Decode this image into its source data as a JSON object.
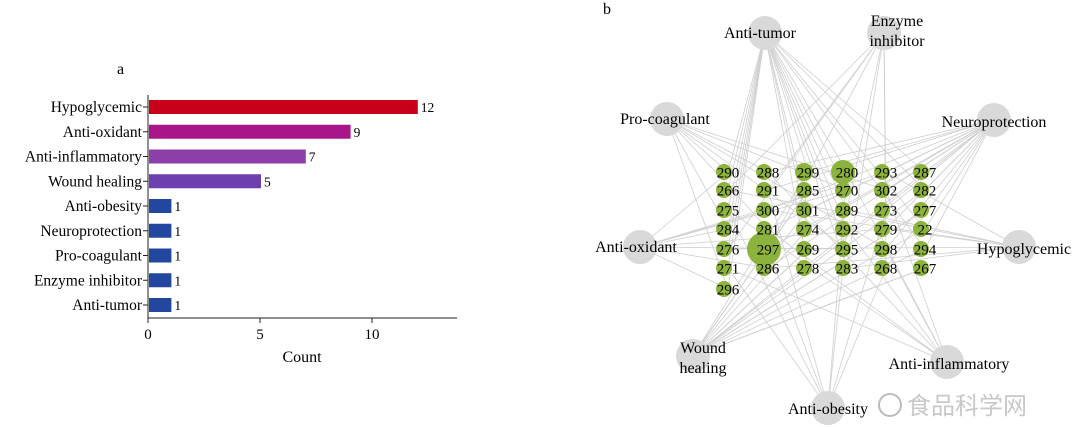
{
  "chart_data": [
    {
      "panel": "a",
      "type": "bar",
      "orientation": "horizontal",
      "xlabel": "Count",
      "xlim": [
        0,
        14
      ],
      "xticks": [
        0,
        5,
        10
      ],
      "categories": [
        "Hypoglycemic",
        "Anti-oxidant",
        "Anti-inflammatory",
        "Wound healing",
        "Anti-obesity",
        "Neuroprotection",
        "Pro-coagulant",
        "Enzyme inhibitor",
        "Anti-tumor"
      ],
      "values": [
        12,
        9,
        7,
        5,
        1,
        1,
        1,
        1,
        1
      ],
      "colors": [
        "#c8001a",
        "#a8178a",
        "#8c3fa8",
        "#6e3fae",
        "#23479e",
        "#23479e",
        "#23479e",
        "#23479e",
        "#23479e"
      ]
    },
    {
      "panel": "b",
      "type": "network",
      "hubs": [
        "Anti-tumor",
        "Enzyme inhibitor",
        "Pro-coagulant",
        "Neuroprotection",
        "Anti-oxidant",
        "Hypoglycemic",
        "Wound healing",
        "Anti-inflammatory",
        "Anti-obesity"
      ],
      "hub_labels": {
        "Anti-tumor": [
          "Anti-tumor"
        ],
        "Enzyme inhibitor": [
          "Enzyme",
          "inhibitor"
        ],
        "Pro-coagulant": [
          "Pro-coagulant"
        ],
        "Neuroprotection": [
          "Neuroprotection"
        ],
        "Anti-oxidant": [
          "Anti-oxidant"
        ],
        "Hypoglycemic": [
          "Hypoglycemic"
        ],
        "Wound healing": [
          "Wound",
          "healing"
        ],
        "Anti-inflammatory": [
          "Anti-inflammatory"
        ],
        "Anti-obesity": [
          "Anti-obesity"
        ]
      },
      "compound_grid": [
        [
          "290",
          "288",
          "299",
          "280",
          "293",
          "287"
        ],
        [
          "266",
          "291",
          "285",
          "270",
          "302",
          "282"
        ],
        [
          "275",
          "300",
          "301",
          "289",
          "273",
          "277"
        ],
        [
          "284",
          "281",
          "274",
          "292",
          "279",
          "22"
        ],
        [
          "276",
          "297",
          "269",
          "295",
          "298",
          "294"
        ],
        [
          "271",
          "286",
          "278",
          "283",
          "268",
          "267"
        ],
        [
          "296"
        ]
      ],
      "hub_color": "#d9d9d9",
      "node_color": "#8db33f"
    }
  ],
  "panel_labels": {
    "a": "a",
    "b": "b"
  },
  "watermark": "食品科学网"
}
